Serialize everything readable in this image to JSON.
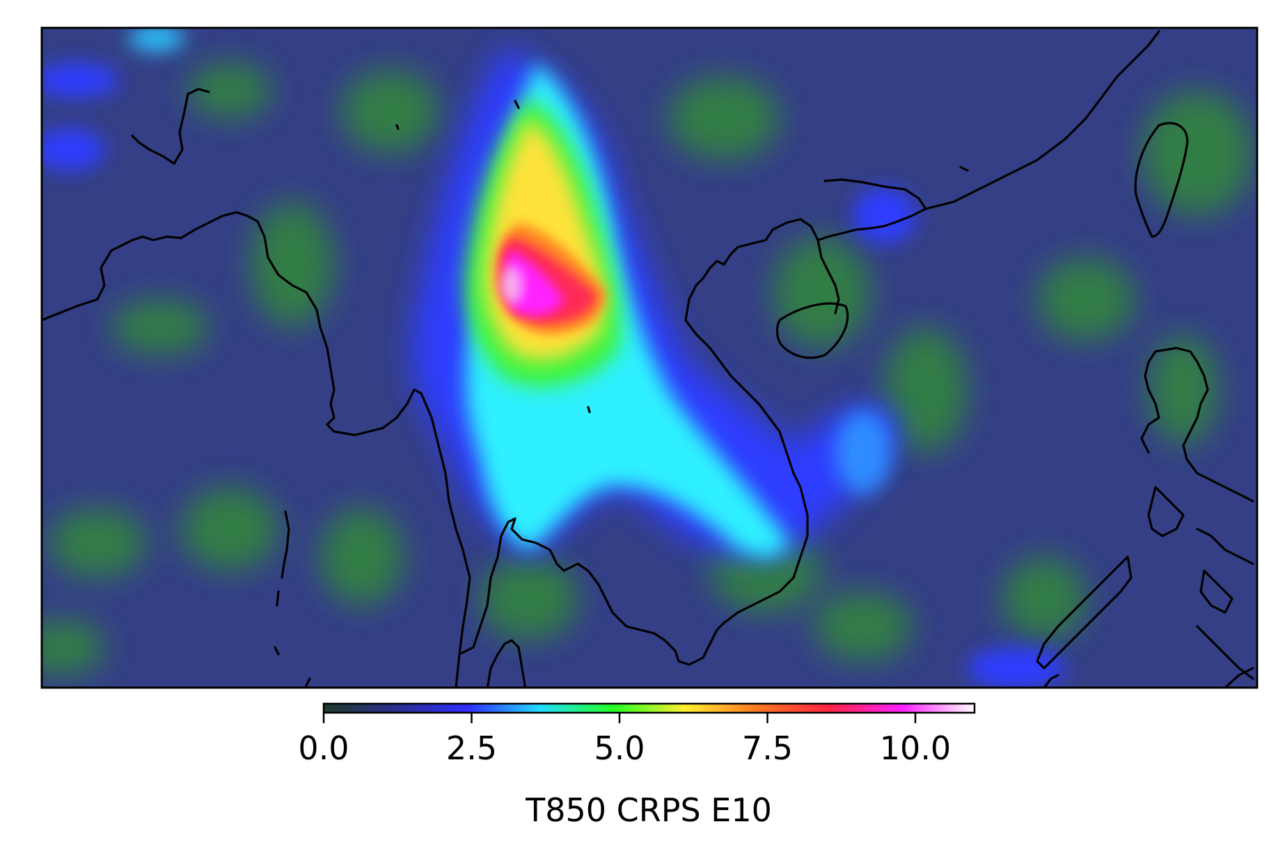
{
  "colorbar": {
    "label": "T850 CRPS E10",
    "min": 0.0,
    "max": 11.0,
    "ticks": [
      {
        "value": 0.0,
        "label": "0.0"
      },
      {
        "value": 2.5,
        "label": "2.5"
      },
      {
        "value": 5.0,
        "label": "5.0"
      },
      {
        "value": 7.5,
        "label": "7.5"
      },
      {
        "value": 10.0,
        "label": "10.0"
      }
    ],
    "colormap": [
      "#1f3a2a",
      "#2a2f8f",
      "#2f2fff",
      "#22ddff",
      "#22ff22",
      "#ffee33",
      "#ff7722",
      "#ff2244",
      "#ff22ff",
      "#ffffff"
    ]
  },
  "map": {
    "region": "Southeast Asia",
    "background_color": "#343f86",
    "hotspot_colors": {
      "peak": "#f4b0f0",
      "high": "#ff2a55",
      "mid": "#ffe23a",
      "low": "#3df43d",
      "cool": "#2ef0ff",
      "cold": "#2d3cff",
      "moderate": "#33883a"
    }
  }
}
